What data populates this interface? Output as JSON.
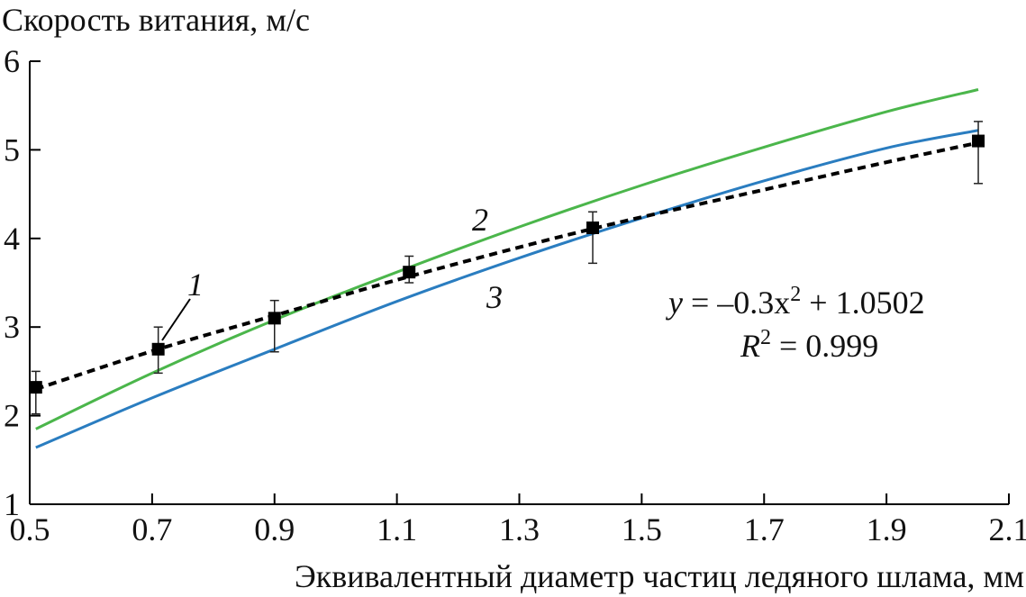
{
  "chart_data": {
    "type": "line",
    "ylabel": "Скорость витания, м/с",
    "xlabel": "Эквивалентный диаметр частиц ледяного шлама, мм",
    "xlim": [
      0.5,
      2.1
    ],
    "ylim": [
      1,
      6
    ],
    "x_ticks": [
      "0.5",
      "0.7",
      "0.9",
      "1.1",
      "1.3",
      "1.5",
      "1.7",
      "1.9",
      "2.1"
    ],
    "y_ticks": [
      "1",
      "2",
      "3",
      "4",
      "5",
      "6"
    ],
    "x_tick_values": [
      0.5,
      0.7,
      0.9,
      1.1,
      1.3,
      1.5,
      1.7,
      1.9,
      2.1
    ],
    "y_tick_values": [
      1,
      2,
      3,
      4,
      5,
      6
    ],
    "grid": false,
    "series": [
      {
        "name": "1",
        "style": "dashed",
        "color": "#000000",
        "marker": "square",
        "x": [
          0.51,
          0.71,
          0.9,
          1.12,
          1.42,
          2.05
        ],
        "y": [
          2.32,
          2.75,
          3.1,
          3.62,
          4.12,
          5.1
        ],
        "err_low": [
          2.02,
          2.48,
          2.72,
          3.5,
          3.72,
          4.62
        ],
        "err_high": [
          2.5,
          3.0,
          3.3,
          3.8,
          4.3,
          5.32
        ],
        "curve_x": [
          0.51,
          0.71,
          0.9,
          1.12,
          1.42,
          1.7,
          1.9,
          2.05
        ],
        "curve_y": [
          2.3,
          2.75,
          3.13,
          3.57,
          4.11,
          4.55,
          4.86,
          5.08
        ]
      },
      {
        "name": "2",
        "style": "solid",
        "color": "#4bb64b",
        "curve_x": [
          0.51,
          0.7,
          0.9,
          1.1,
          1.3,
          1.5,
          1.7,
          1.9,
          2.05
        ],
        "curve_y": [
          1.85,
          2.48,
          3.08,
          3.62,
          4.13,
          4.6,
          5.03,
          5.43,
          5.68
        ]
      },
      {
        "name": "3",
        "style": "solid",
        "color": "#2a7dc0",
        "curve_x": [
          0.51,
          0.7,
          0.9,
          1.1,
          1.3,
          1.5,
          1.7,
          1.9,
          2.05
        ],
        "curve_y": [
          1.64,
          2.2,
          2.75,
          3.29,
          3.78,
          4.23,
          4.65,
          5.02,
          5.22
        ]
      }
    ],
    "curve_labels": [
      "1",
      "2",
      "3"
    ],
    "equation": {
      "line1_prefix": "y",
      "line1_mid": " = –0.3x",
      "line1_sup": "2",
      "line1_suffix": " + 1.0502",
      "line2_prefix": "R",
      "line2_sup": "2",
      "line2_suffix": " = 0.999"
    }
  }
}
